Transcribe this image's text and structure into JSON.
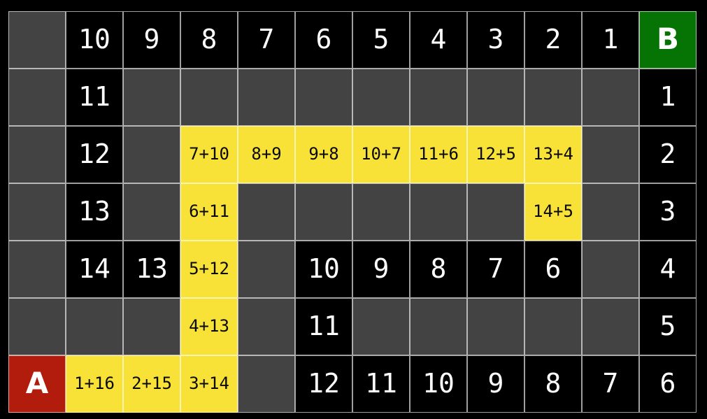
{
  "colors": {
    "page_bg": "#000000",
    "unvisited_bg": "#434343",
    "visited_bg": "#000000",
    "path_bg": "#f8e237",
    "start_bg": "#b11c0c",
    "goal_bg": "#057405",
    "grid_line": "rgba(255,255,255,0.62)",
    "distance_text": "#ffffff",
    "path_text": "#0a0a0a",
    "marker_text": "#ffffff"
  },
  "grid": {
    "rows": 7,
    "cols": 12,
    "start_label": "A",
    "goal_label": "B",
    "cells": [
      [
        {
          "t": "empty",
          "v": ""
        },
        {
          "t": "dist",
          "v": "10"
        },
        {
          "t": "dist",
          "v": "9"
        },
        {
          "t": "dist",
          "v": "8"
        },
        {
          "t": "dist",
          "v": "7"
        },
        {
          "t": "dist",
          "v": "6"
        },
        {
          "t": "dist",
          "v": "5"
        },
        {
          "t": "dist",
          "v": "4"
        },
        {
          "t": "dist",
          "v": "3"
        },
        {
          "t": "dist",
          "v": "2"
        },
        {
          "t": "dist",
          "v": "1"
        },
        {
          "t": "goal",
          "v": "B"
        }
      ],
      [
        {
          "t": "empty",
          "v": ""
        },
        {
          "t": "dist",
          "v": "11"
        },
        {
          "t": "empty",
          "v": ""
        },
        {
          "t": "empty",
          "v": ""
        },
        {
          "t": "empty",
          "v": ""
        },
        {
          "t": "empty",
          "v": ""
        },
        {
          "t": "empty",
          "v": ""
        },
        {
          "t": "empty",
          "v": ""
        },
        {
          "t": "empty",
          "v": ""
        },
        {
          "t": "empty",
          "v": ""
        },
        {
          "t": "empty",
          "v": ""
        },
        {
          "t": "dist",
          "v": "1"
        }
      ],
      [
        {
          "t": "empty",
          "v": ""
        },
        {
          "t": "dist",
          "v": "12"
        },
        {
          "t": "empty",
          "v": ""
        },
        {
          "t": "path",
          "v": "7+10"
        },
        {
          "t": "path",
          "v": "8+9"
        },
        {
          "t": "path",
          "v": "9+8"
        },
        {
          "t": "path",
          "v": "10+7"
        },
        {
          "t": "path",
          "v": "11+6"
        },
        {
          "t": "path",
          "v": "12+5"
        },
        {
          "t": "path",
          "v": "13+4"
        },
        {
          "t": "empty",
          "v": ""
        },
        {
          "t": "dist",
          "v": "2"
        }
      ],
      [
        {
          "t": "empty",
          "v": ""
        },
        {
          "t": "dist",
          "v": "13"
        },
        {
          "t": "empty",
          "v": ""
        },
        {
          "t": "path",
          "v": "6+11"
        },
        {
          "t": "empty",
          "v": ""
        },
        {
          "t": "empty",
          "v": ""
        },
        {
          "t": "empty",
          "v": ""
        },
        {
          "t": "empty",
          "v": ""
        },
        {
          "t": "empty",
          "v": ""
        },
        {
          "t": "path",
          "v": "14+5"
        },
        {
          "t": "empty",
          "v": ""
        },
        {
          "t": "dist",
          "v": "3"
        }
      ],
      [
        {
          "t": "empty",
          "v": ""
        },
        {
          "t": "dist",
          "v": "14"
        },
        {
          "t": "dist",
          "v": "13"
        },
        {
          "t": "path",
          "v": "5+12"
        },
        {
          "t": "empty",
          "v": ""
        },
        {
          "t": "dist",
          "v": "10"
        },
        {
          "t": "dist",
          "v": "9"
        },
        {
          "t": "dist",
          "v": "8"
        },
        {
          "t": "dist",
          "v": "7"
        },
        {
          "t": "dist",
          "v": "6"
        },
        {
          "t": "empty",
          "v": ""
        },
        {
          "t": "dist",
          "v": "4"
        }
      ],
      [
        {
          "t": "empty",
          "v": ""
        },
        {
          "t": "empty",
          "v": ""
        },
        {
          "t": "empty",
          "v": ""
        },
        {
          "t": "path",
          "v": "4+13"
        },
        {
          "t": "empty",
          "v": ""
        },
        {
          "t": "dist",
          "v": "11"
        },
        {
          "t": "empty",
          "v": ""
        },
        {
          "t": "empty",
          "v": ""
        },
        {
          "t": "empty",
          "v": ""
        },
        {
          "t": "empty",
          "v": ""
        },
        {
          "t": "empty",
          "v": ""
        },
        {
          "t": "dist",
          "v": "5"
        }
      ],
      [
        {
          "t": "start",
          "v": "A"
        },
        {
          "t": "path",
          "v": "1+16"
        },
        {
          "t": "path",
          "v": "2+15"
        },
        {
          "t": "path",
          "v": "3+14"
        },
        {
          "t": "empty",
          "v": ""
        },
        {
          "t": "dist",
          "v": "12"
        },
        {
          "t": "dist",
          "v": "11"
        },
        {
          "t": "dist",
          "v": "10"
        },
        {
          "t": "dist",
          "v": "9"
        },
        {
          "t": "dist",
          "v": "8"
        },
        {
          "t": "dist",
          "v": "7"
        },
        {
          "t": "dist",
          "v": "6"
        }
      ]
    ]
  }
}
